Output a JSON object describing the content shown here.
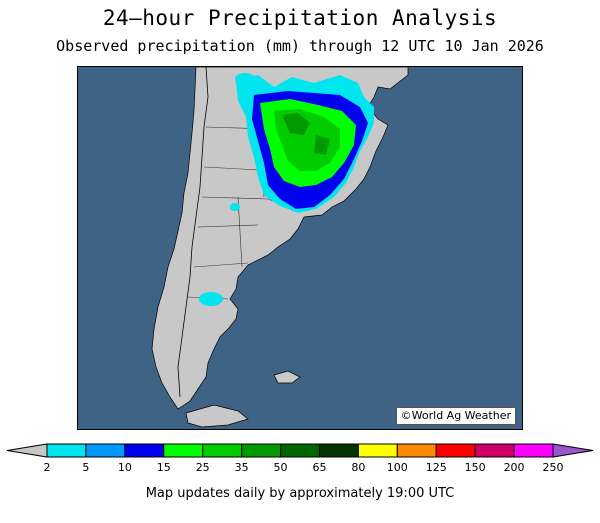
{
  "header": {
    "title": "24—hour Precipitation Analysis",
    "subtitle": "Observed precipitation (mm) through 12 UTC 10 Jan 2026"
  },
  "map": {
    "credit": "©World Ag Weather",
    "colors": {
      "ocean": "#3e6385",
      "land": "#c8c8c8",
      "border": "#000000"
    }
  },
  "legend": {
    "ticks": [
      "2",
      "5",
      "10",
      "15",
      "25",
      "35",
      "50",
      "65",
      "80",
      "100",
      "125",
      "150",
      "200",
      "250"
    ],
    "colors": [
      "#00e5ee",
      "#0099ff",
      "#0000ee",
      "#00ff00",
      "#00cc00",
      "#009900",
      "#006600",
      "#003300",
      "#ffff00",
      "#ff8c00",
      "#ff0000",
      "#cc0066",
      "#ff00ff",
      "#9955cc"
    ],
    "end_color": "#c8c8c8"
  },
  "footer": {
    "text": "Map updates daily by approximately 19:00 UTC"
  }
}
